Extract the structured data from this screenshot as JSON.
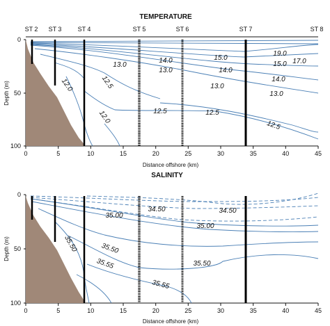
{
  "chart_data": [
    {
      "type": "contour",
      "title": "TEMPERATURE",
      "xlabel": "Distance offshore (km)",
      "ylabel": "Depth (m)",
      "xlim": [
        0,
        45
      ],
      "ylim": [
        0,
        100
      ],
      "xticks": [
        "0",
        "5",
        "10",
        "15",
        "20",
        "25",
        "30",
        "35",
        "40",
        "45"
      ],
      "yticks": [
        "0",
        "50",
        "100"
      ],
      "stations": [
        {
          "name": "ST 2",
          "km": 1
        },
        {
          "name": "ST 3",
          "km": 4.5
        },
        {
          "name": "ST 4",
          "km": 9
        },
        {
          "name": "ST 5",
          "km": 17.5
        },
        {
          "name": "ST 6",
          "km": 24.5
        },
        {
          "name": "ST 7",
          "km": 34.5
        },
        {
          "name": "ST 8",
          "km": 45
        }
      ],
      "contour_labels": [
        {
          "text": "19.0",
          "km": 40.5,
          "depth": 9
        },
        {
          "text": "17.0",
          "km": 43.5,
          "depth": 15
        },
        {
          "text": "15.0",
          "km": 29.5,
          "depth": 12
        },
        {
          "text": "15.0",
          "km": 40.5,
          "depth": 17
        },
        {
          "text": "14.0",
          "km": 22,
          "depth": 14
        },
        {
          "text": "14.0",
          "km": 31,
          "depth": 22
        },
        {
          "text": "14.0",
          "km": 40.5,
          "depth": 29
        },
        {
          "text": "13.0",
          "km": 15,
          "depth": 18
        },
        {
          "text": "13.0",
          "km": 22,
          "depth": 22
        },
        {
          "text": "13.0",
          "km": 30,
          "depth": 33
        },
        {
          "text": "13.0",
          "km": 39.5,
          "depth": 39
        },
        {
          "text": "12.0",
          "km": 6,
          "depth": 31
        },
        {
          "text": "12.5",
          "km": 12.5,
          "depth": 30
        },
        {
          "text": "12.5",
          "km": 21,
          "depth": 50
        },
        {
          "text": "12.5",
          "km": 29,
          "depth": 51
        },
        {
          "text": "12.5",
          "km": 38.5,
          "depth": 62
        },
        {
          "text": "12.0",
          "km": 12,
          "depth": 56
        }
      ]
    },
    {
      "type": "contour",
      "title": "SALINITY",
      "xlabel": "Distance offshore (km)",
      "ylabel": "Depth (m)",
      "xlim": [
        0,
        45
      ],
      "ylim": [
        0,
        100
      ],
      "xticks": [
        "0",
        "5",
        "10",
        "15",
        "20",
        "25",
        "30",
        "35",
        "40",
        "45"
      ],
      "yticks": [
        "0",
        "50",
        "100"
      ],
      "stations_km": [
        1,
        4.5,
        9,
        17.5,
        24.5,
        34.5
      ],
      "contour_labels": [
        {
          "text": "34.50",
          "km": 20,
          "depth": 10
        },
        {
          "text": "34.50",
          "km": 31.5,
          "depth": 11
        },
        {
          "text": "35.00",
          "km": 14,
          "depth": 15
        },
        {
          "text": "35.00",
          "km": 28,
          "depth": 21
        },
        {
          "text": "35.50",
          "km": 7,
          "depth": 34
        },
        {
          "text": "35.50",
          "km": 13,
          "depth": 36
        },
        {
          "text": "35.55",
          "km": 12,
          "depth": 46
        },
        {
          "text": "35.50",
          "km": 28,
          "depth": 46
        },
        {
          "text": "35.55",
          "km": 20,
          "depth": 60
        }
      ]
    }
  ]
}
